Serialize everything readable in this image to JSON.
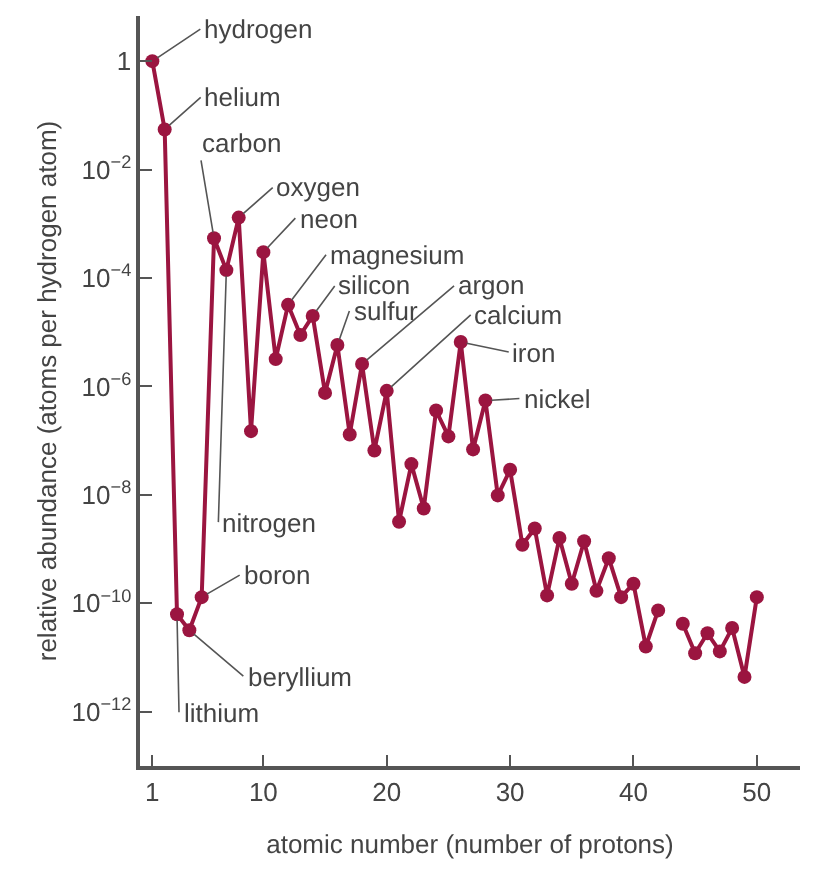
{
  "chart_data": {
    "type": "line",
    "xlabel": "atomic number (number of protons)",
    "ylabel": "relative abundance (atoms per hydrogen atom)",
    "x": [
      1,
      2,
      3,
      4,
      5,
      6,
      7,
      8,
      9,
      10,
      11,
      12,
      13,
      14,
      15,
      16,
      17,
      18,
      19,
      20,
      21,
      22,
      23,
      24,
      25,
      26,
      27,
      28,
      29,
      30,
      31,
      32,
      33,
      34,
      35,
      36,
      37,
      38,
      39,
      40,
      41,
      42,
      43,
      44,
      45,
      46,
      47,
      48,
      49,
      50
    ],
    "series": [
      {
        "color": "#9b1540",
        "values": [
          1,
          0.055,
          6.3e-11,
          3.2e-11,
          1.3e-10,
          0.00054,
          0.00014,
          0.0013,
          1.5e-07,
          0.0003,
          3.2e-06,
          3.2e-05,
          8.9e-06,
          2e-05,
          7.6e-07,
          5.8e-06,
          1.3e-07,
          2.6e-06,
          6.6e-08,
          8.3e-07,
          3.2e-09,
          3.7e-08,
          5.6e-09,
          3.6e-07,
          1.2e-07,
          6.6e-06,
          6.9e-08,
          5.5e-07,
          9.8e-09,
          2.9e-08,
          1.2e-09,
          2.4e-09,
          1.4e-10,
          1.6e-09,
          2.3e-10,
          1.4e-09,
          1.7e-10,
          6.8e-10,
          1.3e-10,
          2.3e-10,
          1.6e-11,
          7.4e-11,
          null,
          4.2e-11,
          1.2e-11,
          2.8e-11,
          1.3e-11,
          3.5e-11,
          4.4e-12,
          1.3e-10
        ]
      }
    ],
    "log": "y",
    "xlim": [
      0,
      53.5
    ],
    "xticks": [
      1,
      10,
      20,
      30,
      40,
      50
    ],
    "ylim": [
      1e-13,
      6.8
    ],
    "yticks": [
      1,
      {
        "value": 0.01,
        "label": "10$^{−2}$"
      },
      {
        "value": 0.0001,
        "label": "10$^{−4}$"
      },
      {
        "value": 1e-06,
        "label": "10$^{−6}$"
      },
      {
        "value": 1e-08,
        "label": "10$^{−8}$"
      },
      {
        "value": 1e-10,
        "label": "10$^{−10}$"
      },
      {
        "value": 1e-12,
        "label": "10$^{−12}$"
      }
    ],
    "marker": "circle",
    "line_style": "solid",
    "annotations": [
      {
        "text": "hydrogen",
        "x": 1,
        "y": 1
      },
      {
        "text": "helium",
        "x": 2,
        "y": 0.055
      },
      {
        "text": "carbon",
        "x": 6,
        "y": 0.00054
      },
      {
        "text": "oxygen",
        "x": 8,
        "y": 0.0013
      },
      {
        "text": "neon",
        "x": 10,
        "y": 0.0003
      },
      {
        "text": "magnesium",
        "x": 12,
        "y": 3.2e-05
      },
      {
        "text": "silicon",
        "x": 14,
        "y": 2e-05
      },
      {
        "text": "sulfur",
        "x": 16,
        "y": 5.8e-06
      },
      {
        "text": "argon",
        "x": 18,
        "y": 2.6e-06
      },
      {
        "text": "calcium",
        "x": 20,
        "y": 8.3e-07
      },
      {
        "text": "iron",
        "x": 26,
        "y": 6.6e-06
      },
      {
        "text": "nickel",
        "x": 28,
        "y": 5.5e-07
      },
      {
        "text": "nitrogen",
        "x": 7,
        "y": 0.00014
      },
      {
        "text": "boron",
        "x": 5,
        "y": 1.3e-10
      },
      {
        "text": "beryllium",
        "x": 4,
        "y": 3.2e-11
      },
      {
        "text": "lithium",
        "x": 3,
        "y": 6.3e-11
      }
    ]
  }
}
